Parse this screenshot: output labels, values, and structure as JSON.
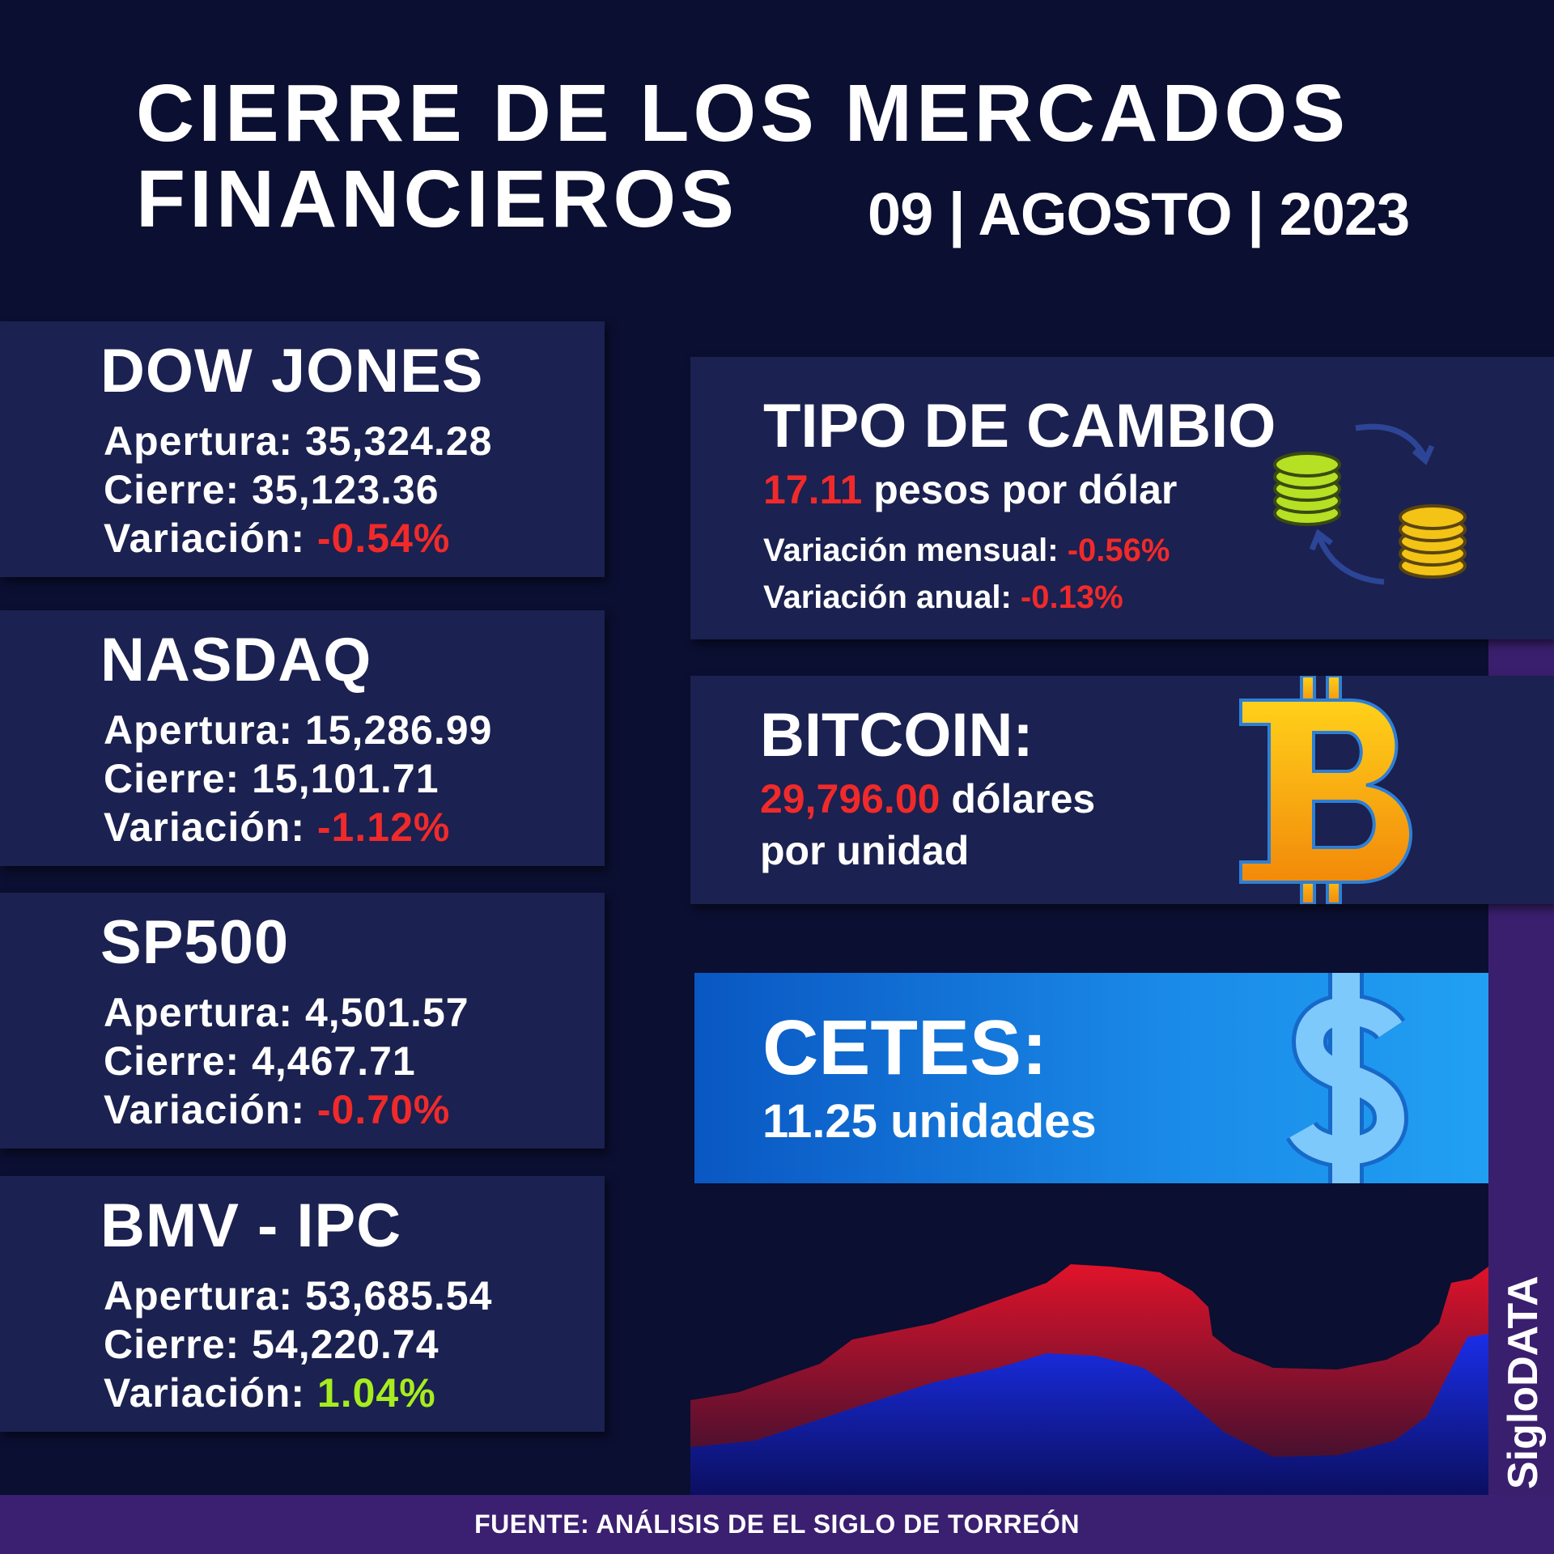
{
  "header": {
    "title_line1": "CIERRE DE LOS MERCADOS",
    "title_line2": "FINANCIEROS",
    "date": "09 | AGOSTO | 2023"
  },
  "indices": [
    {
      "name": "DOW JONES",
      "rows": [
        {
          "label": "Apertura:",
          "value": "35,324.28"
        },
        {
          "label": "Cierre:",
          "value": "35,123.36"
        },
        {
          "label": "Variación:",
          "value": "-0.54%"
        }
      ]
    },
    {
      "name": "NASDAQ",
      "rows": [
        {
          "label": "Apertura:",
          "value": "15,286.99"
        },
        {
          "label": "Cierre:",
          "value": "15,101.71"
        },
        {
          "label": "Variación:",
          "value": "-1.12%"
        }
      ]
    },
    {
      "name": "SP500",
      "rows": [
        {
          "label": "Apertura:",
          "value": "4,501.57"
        },
        {
          "label": "Cierre:",
          "value": "4,467.71"
        },
        {
          "label": "Variación:",
          "value": "-0.70%"
        }
      ]
    },
    {
      "name": "BMV - IPC",
      "rows": [
        {
          "label": "Apertura:",
          "value": "53,685.54"
        },
        {
          "label": "Cierre:",
          "value": "54,220.74"
        },
        {
          "label": "Variación:",
          "value": "1.04%"
        }
      ]
    }
  ],
  "tipo_cambio": {
    "title": "TIPO DE CAMBIO",
    "rate": "17.11",
    "rate_text": "pesos por dólar",
    "rows": [
      {
        "label": "Variación mensual:",
        "value": "-0.56%"
      },
      {
        "label": "Variación anual:",
        "value": "-0.13%"
      }
    ]
  },
  "bitcoin": {
    "title": "BITCOIN:",
    "price": "29,796.00",
    "text_line1": "dólares",
    "text_line2": "por unidad"
  },
  "cetes": {
    "title": "CETES:",
    "value": "11.25",
    "unit": "unidades"
  },
  "brand": "SigloDATA",
  "footer": "FUENTE: ANÁLISIS DE EL SIGLO DE TORREÓN"
}
